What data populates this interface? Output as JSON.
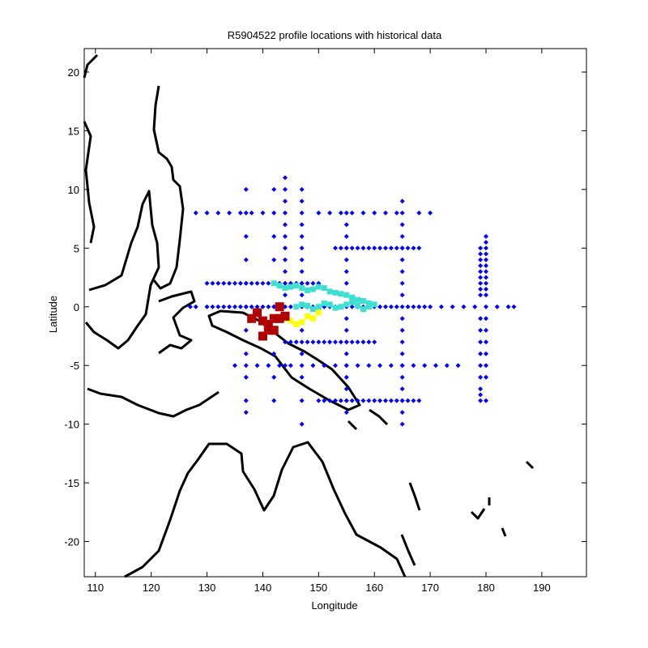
{
  "chart_data": {
    "type": "scatter",
    "title": "R5904522 profile locations with historical data",
    "xlabel": "Longitude",
    "ylabel": "Latitude",
    "xlim": [
      108,
      198
    ],
    "ylim": [
      -23,
      22
    ],
    "x_ticks": [
      110,
      120,
      130,
      140,
      150,
      160,
      170,
      180,
      190
    ],
    "y_ticks": [
      20,
      15,
      10,
      5,
      0,
      -5,
      -10,
      -15,
      -20
    ],
    "grid": false,
    "legend": "none",
    "colors": {
      "coastline": "#000000",
      "historical": "#0000ff",
      "profile_early": "#b00000",
      "profile_mid": "#ffff00",
      "profile_late": "#00ffff"
    },
    "series": [
      {
        "color": "#0000ff",
        "marker": "diamond",
        "x": [
          127,
          128,
          130,
          131,
          132,
          133,
          134,
          135,
          136,
          137,
          138,
          139,
          140,
          141,
          142,
          143,
          144,
          145,
          146,
          147,
          148,
          149,
          150,
          151,
          152,
          153,
          154,
          155,
          156,
          157,
          158,
          159,
          160,
          161,
          162,
          163,
          164,
          165,
          166,
          167,
          168,
          169,
          170,
          172,
          174,
          176,
          178,
          180,
          182,
          184,
          185,
          137,
          137,
          137,
          137,
          137,
          137,
          137,
          137,
          137,
          137,
          137,
          142,
          142,
          142,
          142,
          142,
          142,
          142,
          142,
          142,
          142,
          144,
          144,
          144,
          144,
          144,
          144,
          144,
          144,
          144,
          144,
          144,
          144,
          144,
          144,
          147,
          147,
          147,
          147,
          147,
          147,
          147,
          147,
          147,
          147,
          147,
          147,
          147,
          147,
          147,
          155,
          155,
          155,
          155,
          155,
          155,
          155,
          155,
          155,
          155,
          155,
          155,
          155,
          155,
          155,
          155,
          155,
          165,
          165,
          165,
          165,
          165,
          165,
          165,
          165,
          165,
          165,
          165,
          165,
          165,
          165,
          165,
          165,
          165,
          165,
          165,
          180,
          180,
          180,
          180,
          180,
          180,
          180,
          180,
          180,
          180,
          180,
          180,
          180,
          180,
          180,
          180,
          180,
          180,
          179,
          179,
          179,
          179,
          179,
          179,
          179,
          179,
          179,
          179,
          179,
          179,
          179,
          179,
          179,
          179,
          179,
          179,
          130,
          131,
          132,
          133,
          134,
          135,
          136,
          137,
          138,
          139,
          140,
          141,
          142,
          143,
          144,
          145,
          146,
          147,
          148,
          149,
          150,
          128,
          130,
          132,
          134,
          136,
          138,
          140,
          150,
          152,
          154,
          156,
          158,
          160,
          162,
          164,
          168,
          170,
          135,
          137,
          139,
          141,
          143,
          145,
          147,
          149,
          151,
          153,
          155,
          157,
          159,
          161,
          163,
          165,
          167,
          169,
          171,
          173,
          175,
          153,
          154,
          155,
          156,
          157,
          158,
          159,
          160,
          161,
          162,
          163,
          164,
          165,
          166,
          167,
          168,
          150,
          151,
          152,
          153,
          154,
          155,
          156,
          157,
          158,
          159,
          160,
          161,
          162,
          163,
          164,
          165,
          166,
          167,
          168,
          145,
          146,
          147,
          148,
          149,
          150,
          151,
          152,
          153,
          154,
          155,
          156,
          157,
          158,
          159,
          160
        ],
        "y": [
          0,
          0,
          0,
          0,
          0,
          0,
          0,
          0,
          0,
          0,
          0,
          0,
          0,
          0,
          0,
          0,
          0,
          0,
          0,
          0,
          0,
          0,
          0,
          0,
          0,
          0,
          0,
          0,
          0,
          0,
          0,
          0,
          0,
          0,
          0,
          0,
          0,
          0,
          0,
          0,
          0,
          0,
          0,
          0,
          0,
          0,
          0,
          0,
          0,
          0,
          0,
          8,
          6,
          4,
          2,
          0,
          -2,
          -4,
          -6,
          -8,
          -9,
          10,
          8,
          6,
          4,
          2,
          0,
          -2,
          -4,
          -6,
          -8,
          10,
          11,
          10,
          9,
          8,
          7,
          6,
          5,
          4,
          3,
          2,
          1,
          -1,
          -3,
          -5,
          10,
          9,
          8,
          7,
          6,
          5,
          4,
          3,
          2,
          1,
          -2,
          -4,
          -6,
          -8,
          -10,
          8,
          7,
          6,
          5,
          4,
          3,
          2,
          1,
          -1,
          -2,
          -3,
          -4,
          -5,
          -6,
          -7,
          -8,
          -9,
          9,
          8,
          7,
          6,
          5,
          4,
          3,
          2,
          1,
          -1,
          -2,
          -3,
          -4,
          -5,
          -6,
          -7,
          -8,
          -9,
          -10,
          6,
          5.5,
          5,
          4.5,
          4,
          3.5,
          3,
          2.5,
          2,
          1.5,
          1,
          -1,
          -2,
          -3,
          -4,
          -5,
          -6,
          -8,
          5,
          4.5,
          4,
          3.5,
          3,
          2.5,
          2,
          1.5,
          1,
          -1,
          -2,
          -3,
          -4,
          -5,
          -6,
          -7,
          -7.5,
          -8,
          2,
          2,
          2,
          2,
          2,
          2,
          2,
          2,
          2,
          2,
          2,
          2,
          2,
          2,
          2,
          2,
          2,
          2,
          2,
          2,
          2,
          8,
          8,
          8,
          8,
          8,
          8,
          8,
          8,
          8,
          8,
          8,
          8,
          8,
          8,
          8,
          8,
          8,
          -5,
          -5,
          -5,
          -5,
          -5,
          -5,
          -5,
          -5,
          -5,
          -5,
          -5,
          -5,
          -5,
          -5,
          -5,
          -5,
          -5,
          -5,
          -5,
          -5,
          -5,
          5,
          5,
          5,
          5,
          5,
          5,
          5,
          5,
          5,
          5,
          5,
          5,
          5,
          5,
          5,
          5,
          -8,
          -8,
          -8,
          -8,
          -8,
          -8,
          -8,
          -8,
          -8,
          -8,
          -8,
          -8,
          -8,
          -8,
          -8,
          -8,
          -8,
          -8,
          -8,
          -3,
          -3,
          -3,
          -3,
          -3,
          -3,
          -3,
          -3,
          -3,
          -3,
          -3,
          -3,
          -3,
          -3,
          -3,
          -3
        ]
      },
      {
        "color": "#40e0d0",
        "marker": "square",
        "x": [
          146,
          147,
          148,
          149,
          150,
          151,
          152,
          153,
          154,
          155,
          156,
          157,
          158,
          159,
          160,
          142,
          143,
          144,
          145,
          146,
          147,
          148,
          149,
          150,
          151,
          152,
          153,
          154,
          155,
          156,
          157,
          158,
          159
        ],
        "y": [
          0,
          0.2,
          0.1,
          -0.2,
          0,
          0.3,
          0.2,
          -0.1,
          0,
          0.2,
          0.4,
          0.1,
          -0.2,
          0,
          0.2,
          2,
          1.8,
          1.6,
          1.7,
          1.8,
          1.6,
          1.4,
          1.5,
          1.7,
          1.6,
          1.3,
          1.2,
          1.1,
          1.0,
          0.8,
          0.6,
          0.5,
          0.3
        ]
      },
      {
        "color": "#ffff00",
        "marker": "square",
        "x": [
          144,
          145,
          146,
          147,
          148,
          149,
          150
        ],
        "y": [
          -1,
          -1.2,
          -1.5,
          -1.3,
          -0.8,
          -1,
          -0.5
        ]
      },
      {
        "color": "#b00000",
        "marker": "square",
        "x": [
          138,
          139,
          140,
          141,
          142,
          143,
          144,
          140,
          141,
          142,
          143
        ],
        "y": [
          -1,
          -0.5,
          -1.2,
          -1.5,
          -2,
          -1,
          -0.8,
          -2.5,
          -2,
          -1,
          0
        ]
      }
    ]
  }
}
